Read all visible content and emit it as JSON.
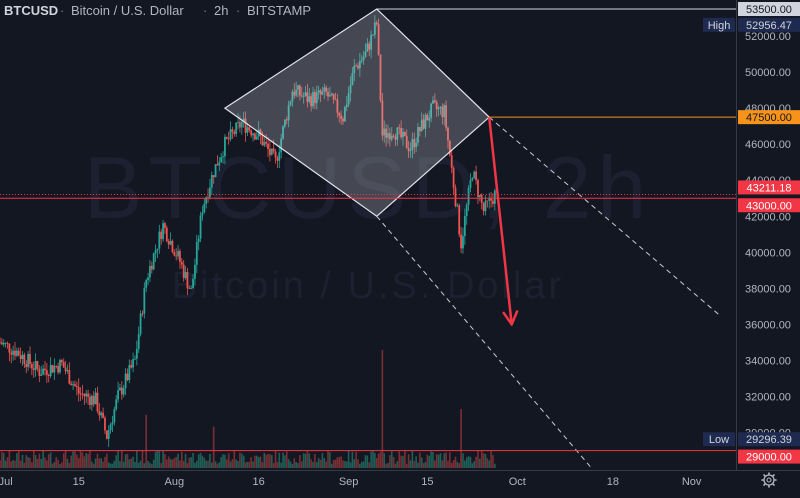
{
  "header": {
    "symbol": "BTCUSD",
    "separator1": "·",
    "name": "Bitcoin / U.S. Dollar",
    "separator2": "·",
    "interval": "2h",
    "separator3": "·",
    "exchange": "BITSTAMP"
  },
  "watermark": {
    "line1": "BTCUSD, 2h",
    "line2": "Bitcoin / U.S. Dollar"
  },
  "colors": {
    "background": "#131722",
    "up": "#26a69a",
    "down": "#ef5350",
    "axis_text": "#b2b5be",
    "orange": "#f7931a",
    "red": "#f23645",
    "navy": "#1e2a50",
    "dark_grey": "#2a2e39"
  },
  "chart_data": {
    "type": "candlestick",
    "x_ticks": [
      "Jul",
      "15",
      "Aug",
      "16",
      "Sep",
      "15",
      "Oct",
      "18",
      "Nov"
    ],
    "y_ticks": [
      30000,
      32000,
      34000,
      36000,
      38000,
      40000,
      42000,
      44000,
      46000,
      48000,
      50000,
      52000
    ],
    "y_range": [
      28200,
      54000
    ],
    "x_range": [
      "2021-07-01",
      "2021-11-08"
    ],
    "price_series_daily_close": [
      {
        "date": "2021-07-01",
        "close": 35000
      },
      {
        "date": "2021-07-04",
        "close": 34500
      },
      {
        "date": "2021-07-08",
        "close": 33400
      },
      {
        "date": "2021-07-12",
        "close": 33800
      },
      {
        "date": "2021-07-15",
        "close": 32200
      },
      {
        "date": "2021-07-18",
        "close": 31800
      },
      {
        "date": "2021-07-20",
        "close": 29800
      },
      {
        "date": "2021-07-22",
        "close": 32000
      },
      {
        "date": "2021-07-25",
        "close": 34000
      },
      {
        "date": "2021-07-27",
        "close": 38500
      },
      {
        "date": "2021-07-30",
        "close": 41500
      },
      {
        "date": "2021-08-02",
        "close": 39500
      },
      {
        "date": "2021-08-04",
        "close": 37800
      },
      {
        "date": "2021-08-06",
        "close": 42500
      },
      {
        "date": "2021-08-08",
        "close": 44500
      },
      {
        "date": "2021-08-10",
        "close": 46000
      },
      {
        "date": "2021-08-13",
        "close": 47200
      },
      {
        "date": "2021-08-16",
        "close": 46500
      },
      {
        "date": "2021-08-19",
        "close": 45000
      },
      {
        "date": "2021-08-22",
        "close": 49000
      },
      {
        "date": "2021-08-25",
        "close": 48500
      },
      {
        "date": "2021-08-28",
        "close": 48800
      },
      {
        "date": "2021-08-31",
        "close": 47500
      },
      {
        "date": "2021-09-02",
        "close": 50200
      },
      {
        "date": "2021-09-04",
        "close": 51000
      },
      {
        "date": "2021-09-06",
        "close": 52700
      },
      {
        "date": "2021-09-07",
        "close": 46500
      },
      {
        "date": "2021-09-09",
        "close": 46800
      },
      {
        "date": "2021-09-12",
        "close": 45800
      },
      {
        "date": "2021-09-14",
        "close": 47000
      },
      {
        "date": "2021-09-16",
        "close": 48000
      },
      {
        "date": "2021-09-18",
        "close": 47800
      },
      {
        "date": "2021-09-20",
        "close": 43000
      },
      {
        "date": "2021-09-21",
        "close": 40500
      },
      {
        "date": "2021-09-23",
        "close": 44500
      },
      {
        "date": "2021-09-25",
        "close": 42300
      },
      {
        "date": "2021-09-27",
        "close": 43211.18
      }
    ],
    "volume_spikes": [
      {
        "date": "2021-07-27",
        "level": 0.45
      },
      {
        "date": "2021-08-08",
        "level": 0.35
      },
      {
        "date": "2021-09-07",
        "level": 1.0
      },
      {
        "date": "2021-09-21",
        "level": 0.5
      }
    ],
    "price_labels": [
      {
        "name": "high-label",
        "text": "High",
        "value": 52956.47,
        "display": "52956.47"
      },
      {
        "name": "level-53500",
        "value": 53500,
        "display": "53500.00"
      },
      {
        "name": "level-47500",
        "value": 47500,
        "display": "47500.00"
      },
      {
        "name": "current-price",
        "value": 43211.18,
        "display": "43211.18"
      },
      {
        "name": "level-43000",
        "value": 43000,
        "display": "43000.00"
      },
      {
        "name": "low-label",
        "text": "Low",
        "value": 29296.39,
        "display": "29296.39"
      },
      {
        "name": "level-29000",
        "value": 29000,
        "display": "29000.00"
      }
    ],
    "drawings": {
      "rhombus": [
        {
          "date": "2021-08-10",
          "price": 48000
        },
        {
          "date": "2021-09-06",
          "price": 53500
        },
        {
          "date": "2021-09-26",
          "price": 47500
        },
        {
          "date": "2021-09-06",
          "price": 42000
        }
      ],
      "upper_channel": [
        {
          "date": "2021-09-26",
          "price": 47500
        },
        {
          "date": "2021-11-06",
          "price": 36500
        }
      ],
      "lower_channel": [
        {
          "date": "2021-09-06",
          "price": 42000
        },
        {
          "date": "2021-10-14",
          "price": 28100
        }
      ],
      "arrow": [
        {
          "date": "2021-09-26",
          "price": 47500
        },
        {
          "date": "2021-09-30",
          "price": 36000
        }
      ]
    }
  }
}
